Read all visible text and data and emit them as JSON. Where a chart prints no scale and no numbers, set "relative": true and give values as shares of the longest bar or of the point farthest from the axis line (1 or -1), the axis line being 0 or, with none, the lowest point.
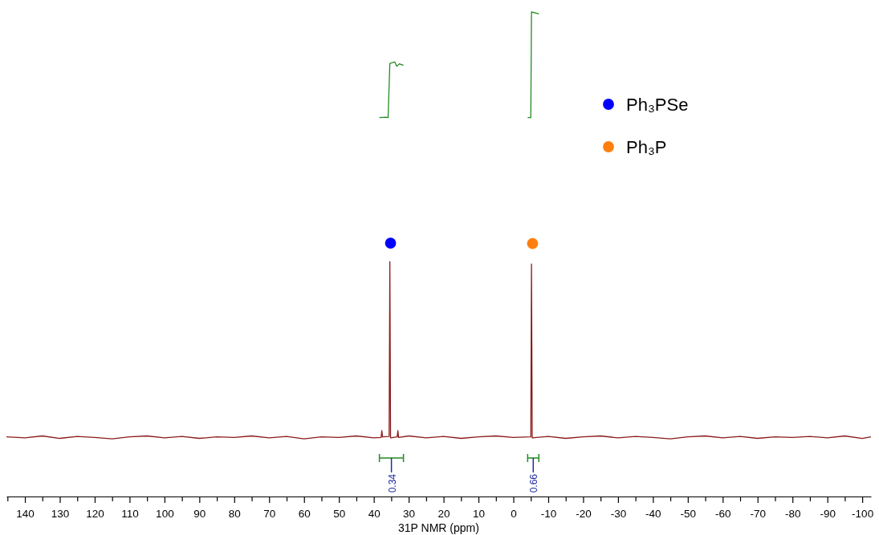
{
  "chart_data": {
    "type": "line",
    "relative": true,
    "xlabel": "31P NMR (ppm)",
    "xlim": [
      145.3,
      -102.5
    ],
    "xticks": [
      {
        "value": 145,
        "label": null
      },
      140,
      {
        "value": 135,
        "label": null
      },
      130,
      {
        "value": 125,
        "label": null
      },
      120,
      {
        "value": 115,
        "label": null
      },
      110,
      {
        "value": 105,
        "label": null
      },
      100,
      {
        "value": 95,
        "label": null
      },
      90,
      {
        "value": 85,
        "label": null
      },
      80,
      {
        "value": 75,
        "label": null
      },
      70,
      {
        "value": 65,
        "label": null
      },
      60,
      {
        "value": 55,
        "label": null
      },
      50,
      {
        "value": 45,
        "label": null
      },
      40,
      {
        "value": 35,
        "label": null
      },
      30,
      {
        "value": 25,
        "label": null
      },
      20,
      {
        "value": 15,
        "label": null
      },
      10,
      {
        "value": 5,
        "label": null
      },
      0,
      {
        "value": -5,
        "label": null
      },
      -10,
      {
        "value": -15,
        "label": null
      },
      -20,
      {
        "value": -25,
        "label": null
      },
      -30,
      {
        "value": -35,
        "label": null
      },
      -40,
      {
        "value": -45,
        "label": null
      },
      -50,
      {
        "value": -55,
        "label": null
      },
      -60,
      {
        "value": -65,
        "label": null
      },
      -70,
      {
        "value": -75,
        "label": null
      },
      -80,
      {
        "value": -85,
        "label": null
      },
      -90,
      {
        "value": -95,
        "label": null
      },
      -100
    ],
    "grid": false,
    "legend": "top right",
    "tick_labels": "x",
    "series": [
      {
        "type": "line",
        "color": "#8b1a1a",
        "x": [
          145.3,
          140,
          135,
          130,
          125,
          120,
          115,
          110,
          105,
          100,
          95,
          90,
          85,
          80,
          75,
          70,
          65,
          60,
          55,
          50,
          45,
          40,
          37.9,
          37.7,
          37.5,
          35.6,
          35.4,
          35.2,
          33.3,
          33.1,
          32.9,
          30,
          25,
          20,
          15,
          10,
          5,
          0,
          -5.0,
          -5.2,
          -5.4,
          -10,
          -15,
          -20,
          -25,
          -30,
          -35,
          -40,
          -45,
          -50,
          -55,
          -60,
          -65,
          -70,
          -75,
          -80,
          -85,
          -90,
          -95,
          -100,
          -102.5
        ],
        "values": [
          0.123,
          0.121,
          0.125,
          0.12,
          0.124,
          0.122,
          0.119,
          0.123,
          0.125,
          0.121,
          0.124,
          0.12,
          0.123,
          0.122,
          0.125,
          0.121,
          0.124,
          0.119,
          0.123,
          0.122,
          0.125,
          0.121,
          0.122,
          0.136,
          0.123,
          0.124,
          0.485,
          0.121,
          0.123,
          0.136,
          0.122,
          0.125,
          0.121,
          0.124,
          0.12,
          0.123,
          0.125,
          0.122,
          0.123,
          0.48,
          0.121,
          0.124,
          0.12,
          0.123,
          0.125,
          0.121,
          0.124,
          0.122,
          0.119,
          0.123,
          0.125,
          0.121,
          0.124,
          0.12,
          0.123,
          0.122,
          0.124,
          0.121,
          0.125,
          0.12,
          0.123
        ]
      },
      {
        "type": "line",
        "color": "#228b22",
        "x": [
          38.4,
          36.6,
          35.9,
          35.4,
          34.0,
          33.4,
          32.7,
          31.5
        ],
        "values": [
          0.782,
          0.783,
          0.782,
          0.894,
          0.897,
          0.888,
          0.893,
          0.89
        ]
      },
      {
        "type": "line",
        "color": "#228b22",
        "x": [
          -4.1,
          -5.0,
          -5.2,
          -6.3,
          -7.3
        ],
        "values": [
          0.782,
          0.782,
          1.0,
          0.998,
          0.996
        ]
      },
      {
        "type": "scatter",
        "name": "Ph₃PSe",
        "color": "#0000ff",
        "marker": "circle",
        "x": [
          35.2
        ],
        "values": [
          0.523
        ]
      },
      {
        "type": "scatter",
        "name": "Ph₃P",
        "color": "#ff7f0e",
        "marker": "circle",
        "x": [
          -5.5
        ],
        "values": [
          0.522
        ]
      }
    ],
    "annotations": [
      {
        "text": "0.34",
        "x": 34.95
      },
      {
        "text": "0.66",
        "x": -5.7
      }
    ]
  }
}
